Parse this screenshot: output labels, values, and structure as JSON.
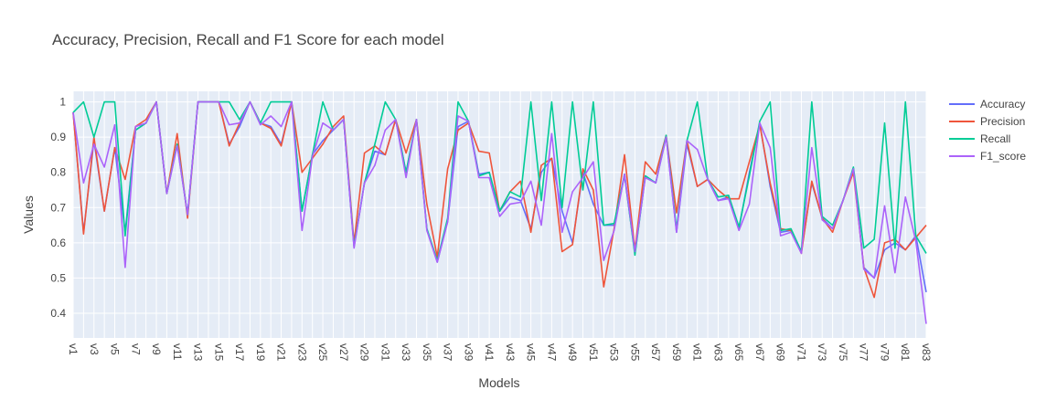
{
  "chart_data": {
    "type": "line",
    "title": "Accuracy, Precision, Recall and F1 Score for each model",
    "xlabel": "Models",
    "ylabel": "Values",
    "ylim": [
      0.33,
      1.03
    ],
    "yticks": [
      0.4,
      0.5,
      0.6,
      0.7,
      0.8,
      0.9,
      1
    ],
    "ytick_labels": [
      "0.4",
      "0.5",
      "0.6",
      "0.7",
      "0.8",
      "0.9",
      "1"
    ],
    "grid": true,
    "legend_position": "top-right",
    "x": [
      "v1",
      "v2",
      "v3",
      "v4",
      "v5",
      "v6",
      "v7",
      "v8",
      "v9",
      "v10",
      "v11",
      "v12",
      "v13",
      "v14",
      "v15",
      "v16",
      "v17",
      "v18",
      "v19",
      "v20",
      "v21",
      "v22",
      "v23",
      "v24",
      "v25",
      "v26",
      "v27",
      "v28",
      "v29",
      "v30",
      "v31",
      "v32",
      "v33",
      "v34",
      "v35",
      "v36",
      "v37",
      "v38",
      "v39",
      "v40",
      "v41",
      "v42",
      "v43",
      "v44",
      "v45",
      "v46",
      "v47",
      "v48",
      "v49",
      "v50",
      "v51",
      "v52",
      "v53",
      "v54",
      "v55",
      "v56",
      "v57",
      "v58",
      "v59",
      "v60",
      "v61",
      "v62",
      "v63",
      "v64",
      "v65",
      "v66",
      "v67",
      "v68",
      "v69",
      "v70",
      "v71",
      "v72",
      "v73",
      "v74",
      "v75",
      "v76",
      "v77",
      "v78",
      "v79",
      "v80",
      "v81",
      "v82",
      "v83"
    ],
    "xtick_labels": [
      "v1",
      "v3",
      "v5",
      "v7",
      "v9",
      "v11",
      "v13",
      "v15",
      "v17",
      "v19",
      "v21",
      "v23",
      "v25",
      "v27",
      "v29",
      "v31",
      "v33",
      "v35",
      "v37",
      "v39",
      "v41",
      "v43",
      "v45",
      "v47",
      "v49",
      "v51",
      "v53",
      "v55",
      "v57",
      "v59",
      "v61",
      "v63",
      "v65",
      "v67",
      "v69",
      "v71",
      "v73",
      "v75",
      "v77",
      "v79",
      "v81",
      "v83"
    ],
    "series": [
      {
        "name": "Accuracy",
        "color": "#636efa",
        "values": [
          0.97,
          0.63,
          0.89,
          0.69,
          0.87,
          0.63,
          0.92,
          0.94,
          1.0,
          0.74,
          0.88,
          0.68,
          1.0,
          1.0,
          1.0,
          0.88,
          0.93,
          1.0,
          0.94,
          0.93,
          0.88,
          1.0,
          0.69,
          0.85,
          0.89,
          0.92,
          0.95,
          0.59,
          0.77,
          0.86,
          0.85,
          0.95,
          0.8,
          0.95,
          0.64,
          0.545,
          0.66,
          0.93,
          0.945,
          0.795,
          0.8,
          0.69,
          0.73,
          0.72,
          0.64,
          0.8,
          0.84,
          0.69,
          0.6,
          0.8,
          0.71,
          0.65,
          0.65,
          0.79,
          0.57,
          0.79,
          0.77,
          0.9,
          0.63,
          0.88,
          0.76,
          0.78,
          0.72,
          0.73,
          0.64,
          0.8,
          0.94,
          0.76,
          0.63,
          0.635,
          0.575,
          0.77,
          0.67,
          0.64,
          0.72,
          0.81,
          0.53,
          0.5,
          0.58,
          0.6,
          0.58,
          0.62,
          0.46
        ]
      },
      {
        "name": "Precision",
        "color": "#ef553b",
        "values": [
          0.97,
          0.625,
          0.9,
          0.69,
          0.87,
          0.78,
          0.93,
          0.95,
          1.0,
          0.74,
          0.91,
          0.67,
          1.0,
          1.0,
          1.0,
          0.875,
          0.94,
          1.0,
          0.94,
          0.925,
          0.875,
          1.0,
          0.8,
          0.84,
          0.88,
          0.93,
          0.96,
          0.6,
          0.855,
          0.875,
          0.85,
          0.95,
          0.855,
          0.95,
          0.71,
          0.56,
          0.81,
          0.92,
          0.94,
          0.86,
          0.855,
          0.69,
          0.745,
          0.775,
          0.63,
          0.82,
          0.84,
          0.575,
          0.595,
          0.81,
          0.75,
          0.475,
          0.64,
          0.85,
          0.58,
          0.83,
          0.795,
          0.905,
          0.685,
          0.89,
          0.76,
          0.78,
          0.75,
          0.725,
          0.725,
          0.83,
          0.935,
          0.77,
          0.64,
          0.635,
          0.57,
          0.775,
          0.67,
          0.63,
          0.72,
          0.8,
          0.53,
          0.445,
          0.6,
          0.61,
          0.58,
          0.615,
          0.65
        ]
      },
      {
        "name": "Recall",
        "color": "#00cc96",
        "values": [
          0.97,
          1.0,
          0.9,
          1.0,
          1.0,
          0.62,
          0.92,
          0.94,
          1.0,
          0.74,
          0.88,
          0.68,
          1.0,
          1.0,
          1.0,
          1.0,
          0.95,
          1.0,
          0.94,
          1.0,
          1.0,
          1.0,
          0.69,
          0.85,
          1.0,
          0.92,
          0.95,
          0.59,
          0.77,
          0.88,
          1.0,
          0.95,
          0.8,
          0.95,
          0.64,
          0.55,
          0.67,
          1.0,
          0.945,
          0.79,
          0.8,
          0.69,
          0.745,
          0.73,
          1.0,
          0.72,
          1.0,
          0.7,
          1.0,
          0.75,
          1.0,
          0.65,
          0.655,
          0.795,
          0.565,
          0.79,
          0.77,
          0.905,
          0.64,
          0.89,
          1.0,
          0.78,
          0.73,
          0.735,
          0.645,
          0.79,
          0.945,
          1.0,
          0.635,
          0.64,
          0.575,
          1.0,
          0.675,
          0.65,
          0.72,
          0.815,
          0.585,
          0.61,
          0.94,
          0.585,
          1.0,
          0.62,
          0.57
        ]
      },
      {
        "name": "F1_score",
        "color": "#ab63fa",
        "values": [
          0.97,
          0.77,
          0.88,
          0.815,
          0.935,
          0.53,
          0.93,
          0.94,
          1.0,
          0.74,
          0.875,
          0.68,
          1.0,
          1.0,
          1.0,
          0.935,
          0.94,
          1.0,
          0.935,
          0.96,
          0.93,
          1.0,
          0.635,
          0.845,
          0.94,
          0.92,
          0.95,
          0.585,
          0.77,
          0.82,
          0.92,
          0.95,
          0.785,
          0.95,
          0.635,
          0.545,
          0.66,
          0.96,
          0.945,
          0.785,
          0.785,
          0.675,
          0.71,
          0.715,
          0.775,
          0.65,
          0.91,
          0.63,
          0.745,
          0.785,
          0.83,
          0.55,
          0.635,
          0.795,
          0.575,
          0.785,
          0.77,
          0.9,
          0.63,
          0.89,
          0.865,
          0.78,
          0.72,
          0.725,
          0.635,
          0.71,
          0.94,
          0.87,
          0.62,
          0.63,
          0.57,
          0.87,
          0.665,
          0.64,
          0.72,
          0.81,
          0.525,
          0.5,
          0.705,
          0.515,
          0.73,
          0.605,
          0.37
        ]
      }
    ]
  }
}
